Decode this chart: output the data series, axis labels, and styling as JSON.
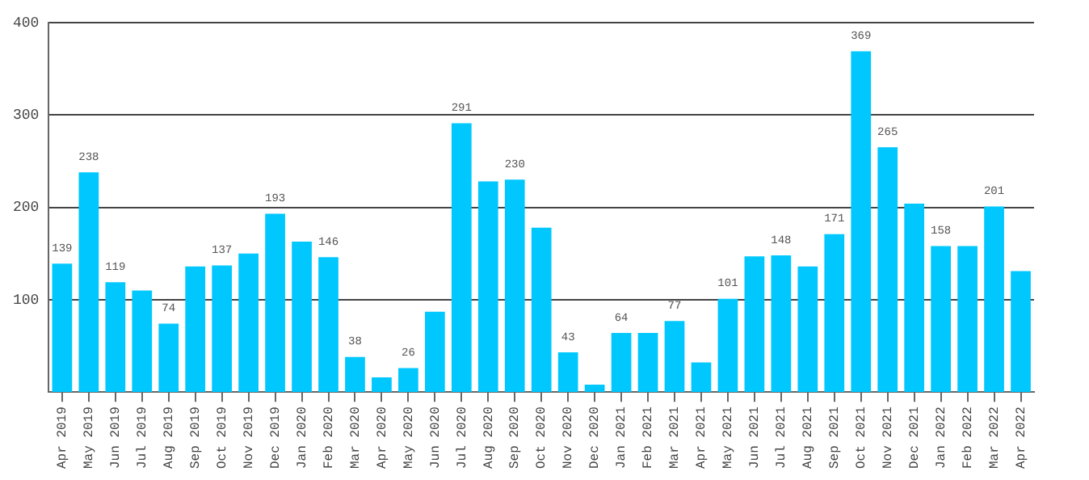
{
  "chart_data": {
    "type": "bar",
    "categories": [
      "Apr 2019",
      "May 2019",
      "Jun 2019",
      "Jul 2019",
      "Aug 2019",
      "Sep 2019",
      "Oct 2019",
      "Nov 2019",
      "Dec 2019",
      "Jan 2020",
      "Feb 2020",
      "Mar 2020",
      "Apr 2020",
      "May 2020",
      "Jun 2020",
      "Jul 2020",
      "Aug 2020",
      "Sep 2020",
      "Oct 2020",
      "Nov 2020",
      "Dec 2020",
      "Jan 2021",
      "Feb 2021",
      "Mar 2021",
      "Apr 2021",
      "May 2021",
      "Jun 2021",
      "Jul 2021",
      "Aug 2021",
      "Sep 2021",
      "Oct 2021",
      "Nov 2021",
      "Dec 2021",
      "Jan 2022",
      "Feb 2022",
      "Mar 2022",
      "Apr 2022"
    ],
    "values": [
      139,
      238,
      119,
      110,
      74,
      136,
      137,
      150,
      193,
      163,
      146,
      38,
      16,
      26,
      87,
      291,
      228,
      230,
      178,
      43,
      8,
      64,
      64,
      77,
      32,
      101,
      147,
      148,
      136,
      171,
      369,
      265,
      204,
      158,
      158,
      201,
      131
    ],
    "value_labels": [
      "139",
      "238",
      "119",
      null,
      "74",
      null,
      "137",
      null,
      "193",
      null,
      "146",
      "38",
      null,
      "26",
      null,
      "291",
      null,
      "230",
      null,
      "43",
      null,
      "64",
      null,
      "77",
      null,
      "101",
      null,
      "148",
      null,
      "171",
      "369",
      "265",
      null,
      "158",
      null,
      "201",
      null
    ],
    "color": "#00c8ff",
    "ylim": [
      0,
      400
    ],
    "yticks": [
      100,
      200,
      300,
      400
    ],
    "grid": "y",
    "legend": false
  }
}
